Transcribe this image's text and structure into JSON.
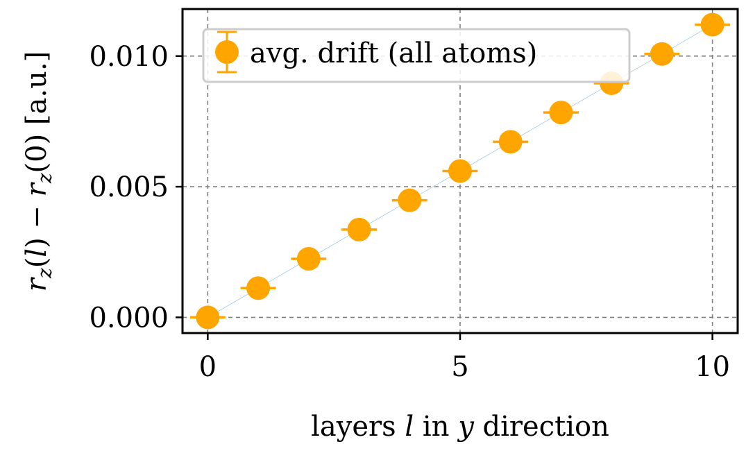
{
  "chart_data": {
    "type": "scatter",
    "xlabel": {
      "prefix": "layers ",
      "var1": "l",
      "middle": " in ",
      "var2": "y",
      "suffix": " direction"
    },
    "ylabel": {
      "r": "r",
      "sub": "z",
      "part1": "(",
      "l": "l",
      "part2": ") − ",
      "part3": "(0) [a.u.]"
    },
    "xlim": [
      -0.5,
      10.5
    ],
    "ylim": [
      -0.0006,
      0.0118
    ],
    "x_ticks": [
      0,
      5,
      10
    ],
    "x_tick_labels": [
      "0",
      "5",
      "10"
    ],
    "y_ticks": [
      0.0,
      0.005,
      0.01
    ],
    "y_tick_labels": [
      "0.000",
      "0.005",
      "0.010"
    ],
    "grid": true,
    "legend_position": "top-left",
    "series": [
      {
        "name": "avg. drift (all atoms)",
        "color": "#ffa500",
        "x": [
          0,
          1,
          2,
          3,
          4,
          5,
          6,
          7,
          8,
          9,
          10
        ],
        "y": [
          0.0,
          0.00112,
          0.00224,
          0.00336,
          0.00448,
          0.0056,
          0.00672,
          0.00784,
          0.00896,
          0.01008,
          0.0112
        ],
        "x_err": [
          0.35,
          0.35,
          0.35,
          0.35,
          0.35,
          0.35,
          0.35,
          0.35,
          0.35,
          0.35,
          0.35
        ]
      }
    ],
    "trend_line": {
      "color": "#9ecae1"
    }
  }
}
